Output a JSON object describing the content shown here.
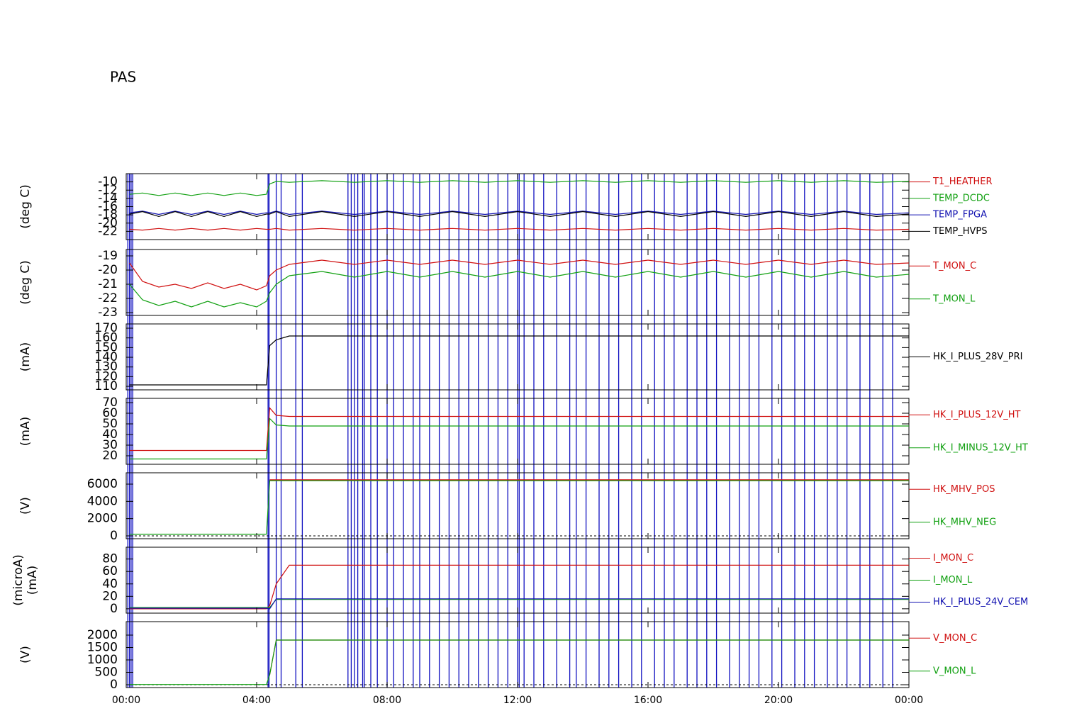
{
  "chart_data": [
    {
      "type": "line",
      "title": "PAS",
      "ylabel": [
        "(deg C)"
      ],
      "x": [
        0.1,
        0.5,
        1,
        1.5,
        2,
        2.5,
        3,
        3.5,
        4,
        4.3,
        4.4,
        4.6,
        5,
        6,
        7,
        8,
        9,
        10,
        11,
        12,
        13,
        14,
        15,
        16,
        17,
        18,
        19,
        20,
        21,
        22,
        23,
        24
      ],
      "xlim": [
        0,
        24
      ],
      "ylim": [
        -24,
        -8
      ],
      "yticks": [
        -10,
        -12,
        -14,
        -16,
        -18,
        -20,
        -22
      ],
      "events": [
        0.05,
        0.1,
        0.15,
        0.2,
        4.35,
        4.38,
        4.6,
        4.75,
        5.2,
        5.4,
        6.8,
        6.9,
        7.0,
        7.1,
        7.25,
        7.3,
        7.5,
        7.7,
        8.0,
        8.2,
        8.5,
        8.8,
        9.0,
        9.3,
        9.6,
        9.9,
        10.2,
        10.5,
        10.8,
        11.1,
        11.4,
        11.7,
        12.0,
        12.05,
        12.2,
        12.5,
        12.8,
        13.2,
        13.6,
        13.8,
        14.1,
        14.5,
        14.8,
        15.1,
        15.5,
        15.8,
        16.2,
        16.5,
        16.8,
        17.2,
        17.5,
        17.8,
        18.1,
        18.5,
        18.8,
        19.1,
        19.4,
        19.8,
        20.1,
        20.5,
        20.8,
        21.1,
        21.5,
        21.8,
        22.1,
        22.5,
        22.8,
        23.2,
        23.5
      ],
      "series": [
        {
          "name": "T1_HEATHER",
          "color": "#d01010",
          "values": [
            -21.5,
            -21.7,
            -21.3,
            -21.7,
            -21.3,
            -21.7,
            -21.3,
            -21.7,
            -21.3,
            -21.5,
            -21.5,
            -21.3,
            -21.7,
            -21.3,
            -21.7,
            -21.3,
            -21.7,
            -21.3,
            -21.7,
            -21.3,
            -21.7,
            -21.3,
            -21.7,
            -21.3,
            -21.7,
            -21.3,
            -21.7,
            -21.3,
            -21.7,
            -21.3,
            -21.7,
            -21.5
          ]
        },
        {
          "name": "TEMP_DCDC",
          "color": "#10a010",
          "values": [
            -13,
            -12.7,
            -13.3,
            -12.7,
            -13.3,
            -12.7,
            -13.3,
            -12.7,
            -13.3,
            -13,
            -10.5,
            -9.9,
            -10.1,
            -9.7,
            -10.1,
            -9.7,
            -10.1,
            -9.7,
            -10.1,
            -9.7,
            -10.1,
            -9.7,
            -10.1,
            -9.7,
            -10.1,
            -9.7,
            -10.1,
            -9.7,
            -10.1,
            -9.7,
            -10.1,
            -9.9
          ]
        },
        {
          "name": "TEMP_FPGA",
          "color": "#1010b0",
          "values": [
            -17.5,
            -17.1,
            -17.9,
            -17.1,
            -17.9,
            -17.1,
            -17.9,
            -17.1,
            -17.9,
            -17.5,
            -17.5,
            -17.1,
            -17.9,
            -17.1,
            -17.9,
            -17.1,
            -17.9,
            -17.1,
            -17.9,
            -17.1,
            -17.9,
            -17.1,
            -17.9,
            -17.1,
            -17.9,
            -17.1,
            -17.9,
            -17.1,
            -17.9,
            -17.1,
            -17.9,
            -17.5
          ]
        },
        {
          "name": "TEMP_HVPS",
          "color": "#000000",
          "values": [
            -17.8,
            -17.2,
            -18.4,
            -17.2,
            -18.4,
            -17.2,
            -18.4,
            -17.2,
            -18.4,
            -17.8,
            -17.8,
            -17.2,
            -18.4,
            -17.2,
            -18.4,
            -17.2,
            -18.4,
            -17.2,
            -18.4,
            -17.2,
            -18.4,
            -17.2,
            -18.4,
            -17.2,
            -18.4,
            -17.2,
            -18.4,
            -17.2,
            -18.4,
            -17.2,
            -18.4,
            -17.8
          ]
        }
      ]
    },
    {
      "type": "line",
      "ylabel": [
        "(deg C)"
      ],
      "x": [
        0.1,
        0.5,
        1,
        1.5,
        2,
        2.5,
        3,
        3.5,
        4,
        4.3,
        4.4,
        4.6,
        5,
        6,
        7,
        8,
        9,
        10,
        11,
        12,
        13,
        14,
        15,
        16,
        17,
        18,
        19,
        20,
        21,
        22,
        23,
        24
      ],
      "xlim": [
        0,
        24
      ],
      "ylim": [
        -23.2,
        -18.55
      ],
      "yticks": [
        -19,
        -20,
        -21,
        -22,
        -23
      ],
      "series": [
        {
          "name": "T_MON_C",
          "color": "#d01010",
          "values": [
            -19.5,
            -20.8,
            -21.2,
            -21.0,
            -21.3,
            -20.9,
            -21.3,
            -21.0,
            -21.4,
            -21.1,
            -20.4,
            -20.0,
            -19.6,
            -19.3,
            -19.6,
            -19.3,
            -19.6,
            -19.3,
            -19.6,
            -19.3,
            -19.6,
            -19.3,
            -19.6,
            -19.3,
            -19.6,
            -19.3,
            -19.6,
            -19.3,
            -19.6,
            -19.3,
            -19.6,
            -19.5
          ]
        },
        {
          "name": "T_MON_L",
          "color": "#10a010",
          "values": [
            -21.0,
            -22.1,
            -22.5,
            -22.2,
            -22.6,
            -22.2,
            -22.6,
            -22.3,
            -22.6,
            -22.2,
            -21.6,
            -21.0,
            -20.4,
            -20.1,
            -20.5,
            -20.1,
            -20.5,
            -20.1,
            -20.5,
            -20.1,
            -20.5,
            -20.1,
            -20.5,
            -20.1,
            -20.5,
            -20.1,
            -20.5,
            -20.1,
            -20.5,
            -20.1,
            -20.5,
            -20.3
          ]
        }
      ]
    },
    {
      "type": "line",
      "ylabel": [
        "(mA)"
      ],
      "x": [
        0.1,
        0.5,
        1,
        1.5,
        2,
        2.5,
        3,
        3.5,
        4,
        4.3,
        4.4,
        4.6,
        5,
        6,
        7,
        8,
        9,
        10,
        11,
        12,
        13,
        14,
        15,
        16,
        17,
        18,
        19,
        20,
        21,
        22,
        23,
        24
      ],
      "xlim": [
        0,
        24
      ],
      "ylim": [
        106.4,
        174.4
      ],
      "yticks": [
        110,
        120,
        130,
        140,
        150,
        160,
        170
      ],
      "series": [
        {
          "name": "HK_I_PLUS_28V_PRI",
          "color": "#000000",
          "values": [
            111.5,
            111.5,
            111.5,
            111.5,
            111.5,
            111.5,
            111.5,
            111.5,
            111.5,
            111.5,
            152,
            158,
            162,
            162,
            162,
            162,
            162,
            162,
            162,
            162,
            162,
            162,
            162,
            162,
            162,
            162,
            162,
            162,
            162,
            162,
            162,
            162
          ]
        }
      ]
    },
    {
      "type": "line",
      "ylabel": [
        "(mA)"
      ],
      "x": [
        0.1,
        0.5,
        1,
        1.5,
        2,
        2.5,
        3,
        3.5,
        4,
        4.3,
        4.4,
        4.6,
        5,
        6,
        7,
        8,
        9,
        10,
        11,
        12,
        13,
        14,
        15,
        16,
        17,
        18,
        19,
        20,
        21,
        22,
        23,
        24
      ],
      "xlim": [
        0,
        24
      ],
      "ylim": [
        12,
        74
      ],
      "yticks": [
        20,
        30,
        40,
        50,
        60,
        70
      ],
      "series": [
        {
          "name": "HK_I_PLUS_12V_HT",
          "color": "#d01010",
          "values": [
            25,
            25,
            25,
            25,
            25,
            25,
            25,
            25,
            25,
            25,
            65,
            58,
            57,
            57,
            57,
            57,
            57,
            57,
            57,
            57,
            57,
            57,
            57,
            57,
            57,
            57,
            57,
            57,
            57,
            57,
            57,
            57
          ]
        },
        {
          "name": "HK_I_MINUS_12V_HT",
          "color": "#10a010",
          "values": [
            17,
            17,
            17,
            17,
            17,
            17,
            17,
            17,
            17,
            17,
            55,
            49,
            48,
            48,
            48,
            48,
            48,
            48,
            48,
            48,
            48,
            48,
            48,
            48,
            48,
            48,
            48,
            48,
            48,
            48,
            48,
            48
          ]
        }
      ]
    },
    {
      "type": "line",
      "ylabel": [
        "(V)"
      ],
      "zero_line": true,
      "x": [
        0.1,
        0.5,
        1,
        1.5,
        2,
        2.5,
        3,
        3.5,
        4,
        4.3,
        4.4,
        4.6,
        5,
        6,
        7,
        8,
        9,
        10,
        11,
        12,
        13,
        14,
        15,
        16,
        17,
        18,
        19,
        20,
        21,
        22,
        23,
        24
      ],
      "xlim": [
        0,
        24
      ],
      "ylim": [
        -329,
        7315
      ],
      "yticks": [
        0,
        2000,
        4000,
        6000
      ],
      "series": [
        {
          "name": "HK_MHV_POS",
          "color": "#d01010",
          "values": [
            null,
            null,
            null,
            null,
            null,
            null,
            null,
            null,
            null,
            null,
            6500,
            6500,
            6500,
            6500,
            6500,
            6500,
            6500,
            6500,
            6500,
            6500,
            6500,
            6500,
            6500,
            6500,
            6500,
            6500,
            6500,
            6500,
            6500,
            6500,
            6500,
            6500
          ]
        },
        {
          "name": "HK_MHV_NEG",
          "color": "#10a010",
          "values": [
            200,
            200,
            200,
            200,
            200,
            200,
            200,
            200,
            200,
            200,
            6400,
            6400,
            6400,
            6400,
            6400,
            6400,
            6400,
            6400,
            6400,
            6400,
            6400,
            6400,
            6400,
            6400,
            6400,
            6400,
            6400,
            6400,
            6400,
            6400,
            6400,
            6400
          ]
        }
      ]
    },
    {
      "type": "line",
      "ylabel": [
        "(microA)",
        "(mA)"
      ],
      "x": [
        0.1,
        0.5,
        1,
        1.5,
        2,
        2.5,
        3,
        3.5,
        4,
        4.3,
        4.4,
        4.6,
        5,
        6,
        7,
        8,
        9,
        10,
        11,
        12,
        13,
        14,
        15,
        16,
        17,
        18,
        19,
        20,
        21,
        22,
        23,
        24
      ],
      "xlim": [
        0,
        24
      ],
      "ylim": [
        -7,
        99
      ],
      "yticks": [
        0,
        20,
        40,
        60,
        80
      ],
      "series": [
        {
          "name": "I_MON_C",
          "color": "#d01010",
          "values": [
            0,
            0,
            0,
            0,
            0,
            0,
            0,
            0,
            0,
            0,
            5,
            40,
            70,
            70,
            70,
            70,
            70,
            70,
            70,
            70,
            70,
            70,
            70,
            70,
            70,
            70,
            70,
            70,
            70,
            70,
            70,
            70
          ]
        },
        {
          "name": "I_MON_L",
          "color": "#10a010",
          "values": [
            2,
            2,
            2,
            2,
            2,
            2,
            2,
            2,
            2,
            2,
            2,
            15,
            15,
            15,
            15,
            15,
            15,
            15,
            15,
            15,
            15,
            15,
            15,
            15,
            15,
            15,
            15,
            15,
            15,
            15,
            15,
            15
          ]
        },
        {
          "name": "HK_I_PLUS_24V_CEM",
          "color": "#1010b0",
          "values": [
            1,
            1,
            1,
            1,
            1,
            1,
            1,
            1,
            1,
            1,
            0,
            16,
            16,
            16,
            16,
            16,
            16,
            16,
            16,
            16,
            16,
            16,
            16,
            16,
            16,
            16,
            16,
            16,
            16,
            16,
            16,
            16
          ]
        }
      ]
    },
    {
      "type": "line",
      "ylabel": [
        "(V)"
      ],
      "zero_line": true,
      "x": [
        0.1,
        0.5,
        1,
        1.5,
        2,
        2.5,
        3,
        3.5,
        4,
        4.3,
        4.4,
        4.6,
        5,
        6,
        7,
        8,
        9,
        10,
        11,
        12,
        13,
        14,
        15,
        16,
        17,
        18,
        19,
        20,
        21,
        22,
        23,
        24
      ],
      "xlim": [
        0,
        24
      ],
      "ylim": [
        -114,
        2543
      ],
      "yticks": [
        0,
        500,
        1000,
        1500,
        2000
      ],
      "xticks": [
        {
          "value": 0,
          "label": "00:00"
        },
        {
          "value": 4,
          "label": "04:00"
        },
        {
          "value": 8,
          "label": "08:00"
        },
        {
          "value": 12,
          "label": "12:00"
        },
        {
          "value": 16,
          "label": "16:00"
        },
        {
          "value": 20,
          "label": "20:00"
        },
        {
          "value": 24,
          "label": "00:00"
        }
      ],
      "series": [
        {
          "name": "V_MON_C",
          "color": "#d01010",
          "values": [
            null,
            null,
            null,
            null,
            null,
            null,
            null,
            null,
            null,
            null,
            400,
            1800,
            1800,
            1800,
            1800,
            1800,
            1800,
            1800,
            1800,
            1800,
            1800,
            1800,
            1800,
            1800,
            1800,
            1800,
            1800,
            1800,
            1800,
            1800,
            1800,
            1800
          ]
        },
        {
          "name": "V_MON_L",
          "color": "#10a010",
          "values": [
            10,
            10,
            10,
            10,
            10,
            10,
            10,
            10,
            10,
            10,
            400,
            1800,
            1800,
            1800,
            1800,
            1800,
            1800,
            1800,
            1800,
            1800,
            1800,
            1800,
            1800,
            1800,
            1800,
            1800,
            1800,
            1800,
            1800,
            1800,
            1800,
            1800
          ]
        }
      ]
    }
  ]
}
